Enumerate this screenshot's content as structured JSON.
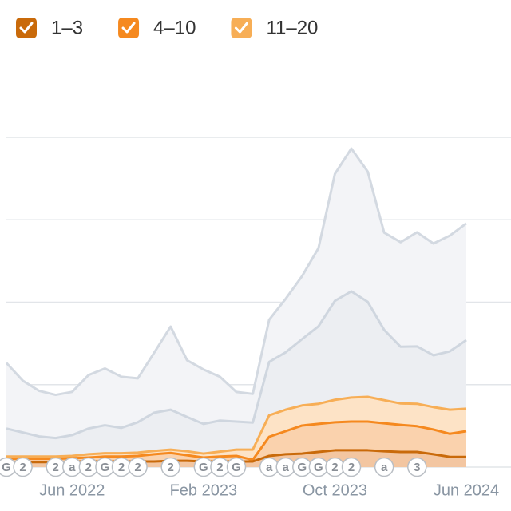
{
  "chart_data": {
    "type": "area",
    "stacked": true,
    "grid": true,
    "ytick_labels": false,
    "ylim": [
      0,
      100
    ],
    "yticks": [
      0,
      25,
      50,
      75,
      100
    ],
    "categories": [
      null,
      null,
      null,
      null,
      "Jun 2022",
      null,
      null,
      null,
      null,
      null,
      null,
      null,
      "Feb 2023",
      null,
      null,
      null,
      null,
      null,
      null,
      null,
      "Oct 2023",
      null,
      null,
      null,
      null,
      null,
      null,
      null,
      "Jun 2024"
    ],
    "series": [
      {
        "name": "1–3",
        "color": "#c96a0a",
        "fill": "#f3c6a1",
        "values": [
          1.5,
          1.5,
          1.5,
          1.5,
          1.7,
          1.7,
          1.7,
          1.7,
          1.7,
          1.7,
          1.9,
          1.9,
          1.7,
          1.7,
          1.7,
          1.7,
          3.4,
          3.9,
          4.1,
          4.6,
          5.1,
          5.1,
          5.1,
          4.8,
          4.6,
          4.6,
          3.9,
          3.1,
          3.1
        ]
      },
      {
        "name": "4–10",
        "color": "#f5891f",
        "fill": "#fad2ad",
        "values": [
          1.0,
          1.0,
          1.0,
          1.0,
          1.0,
          1.2,
          1.5,
          1.5,
          1.7,
          2.2,
          2.4,
          1.7,
          1.2,
          1.5,
          1.7,
          0.5,
          5.8,
          7.0,
          8.5,
          8.5,
          8.5,
          8.7,
          8.7,
          8.5,
          8.2,
          7.8,
          7.5,
          7.0,
          7.8
        ]
      },
      {
        "name": "11–20",
        "color": "#f7ae56",
        "fill": "#fde3c6",
        "values": [
          0.7,
          0.7,
          0.7,
          0.7,
          0.7,
          1.0,
          1.0,
          1.0,
          1.0,
          1.0,
          1.0,
          1.2,
          1.2,
          1.5,
          1.9,
          3.1,
          6.5,
          6.5,
          6.1,
          6.1,
          6.8,
          7.3,
          7.5,
          7.0,
          6.5,
          6.8,
          6.8,
          7.3,
          6.8
        ]
      },
      {
        "color": "#cfd6df",
        "fill": "#eceef2",
        "values": [
          8.5,
          7.3,
          6.1,
          5.6,
          6.3,
          7.8,
          8.5,
          7.7,
          9.2,
          11.6,
          12.1,
          10.4,
          9.0,
          9.4,
          8.5,
          8.2,
          16.2,
          17.4,
          20.1,
          23.5,
          30.0,
          32.2,
          28.8,
          21.3,
          17.2,
          17.4,
          15.7,
          17.7,
          20.8
        ]
      },
      {
        "color": "#d3d9e1",
        "fill": "#f3f4f7",
        "values": [
          19.9,
          15.7,
          13.8,
          13.1,
          13.1,
          16.2,
          17.2,
          15.5,
          13.3,
          18.2,
          25.2,
          17.2,
          16.5,
          13.3,
          9.0,
          8.7,
          12.8,
          16.2,
          19.1,
          23.7,
          38.5,
          43.3,
          39.5,
          29.5,
          31.7,
          34.6,
          33.9,
          35.1,
          35.4
        ]
      }
    ],
    "markers": [
      {
        "index": 0,
        "label": "G"
      },
      {
        "index": 1,
        "label": "2"
      },
      {
        "index": 3,
        "label": "2"
      },
      {
        "index": 4,
        "label": "a"
      },
      {
        "index": 5,
        "label": "2"
      },
      {
        "index": 6,
        "label": "G"
      },
      {
        "index": 7,
        "label": "2"
      },
      {
        "index": 8,
        "label": "2"
      },
      {
        "index": 10,
        "label": "2"
      },
      {
        "index": 12,
        "label": "G"
      },
      {
        "index": 13,
        "label": "2"
      },
      {
        "index": 14,
        "label": "G"
      },
      {
        "index": 16,
        "label": "a"
      },
      {
        "index": 17,
        "label": "a"
      },
      {
        "index": 18,
        "label": "G"
      },
      {
        "index": 19,
        "label": "G"
      },
      {
        "index": 20,
        "label": "2"
      },
      {
        "index": 21,
        "label": "2"
      },
      {
        "index": 23,
        "label": "a"
      },
      {
        "index": 25,
        "label": "3"
      }
    ]
  }
}
